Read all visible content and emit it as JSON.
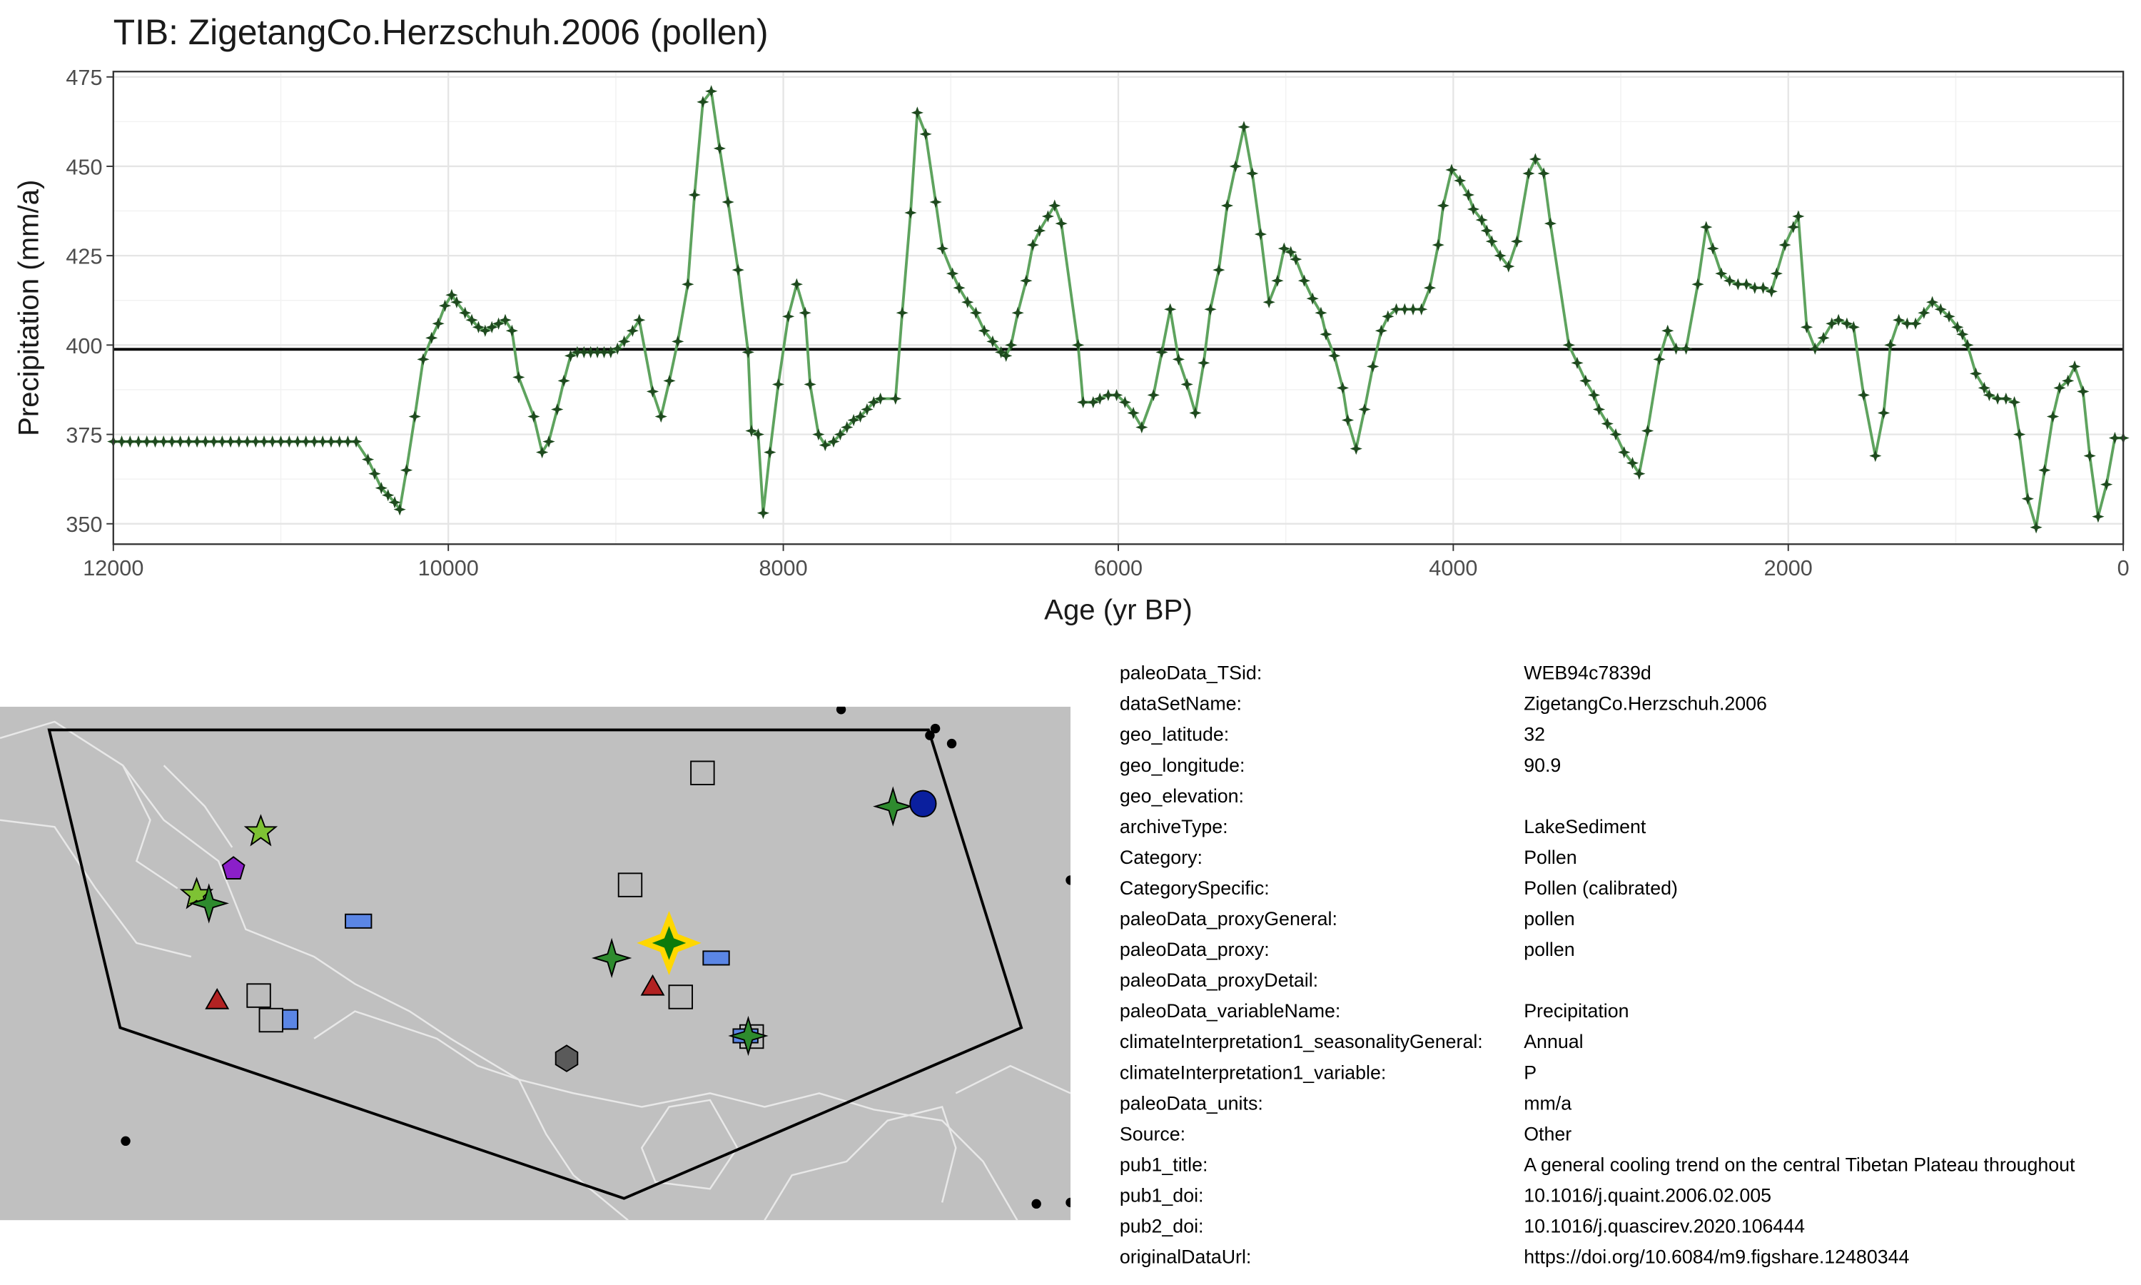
{
  "chart_data": {
    "type": "line",
    "title": "TIB: ZigetangCo.Herzschuh.2006 (pollen)",
    "x_label": "Age (yr BP)",
    "y_label": "Precipitation (mm/a)",
    "xlim": [
      12000,
      0
    ],
    "ylim": [
      344.3,
      476.5
    ],
    "xticks": [
      12000,
      10000,
      8000,
      6000,
      4000,
      2000,
      0
    ],
    "yticks": [
      350,
      375,
      400,
      425,
      450,
      475
    ],
    "xminor": [
      11000,
      9000,
      7000,
      5000,
      3000,
      1000
    ],
    "yminor": [
      362.5,
      387.5,
      412.5,
      437.5,
      462.5
    ],
    "grid": true,
    "reference_line": 398.8,
    "x": [
      12000,
      11950,
      11900,
      11850,
      11800,
      11750,
      11700,
      11650,
      11600,
      11550,
      11500,
      11450,
      11400,
      11350,
      11300,
      11250,
      11200,
      11150,
      11100,
      11050,
      11000,
      10950,
      10900,
      10850,
      10800,
      10750,
      10700,
      10650,
      10600,
      10550,
      10480,
      10440,
      10400,
      10360,
      10320,
      10290,
      10250,
      10200,
      10150,
      10100,
      10060,
      10020,
      9980,
      9950,
      9900,
      9860,
      9820,
      9780,
      9740,
      9700,
      9660,
      9620,
      9580,
      9490,
      9440,
      9400,
      9350,
      9310,
      9270,
      9230,
      9190,
      9150,
      9110,
      9070,
      9030,
      8990,
      8950,
      8900,
      8860,
      8780,
      8730,
      8680,
      8630,
      8570,
      8530,
      8480,
      8430,
      8380,
      8330,
      8270,
      8210,
      8190,
      8150,
      8120,
      8080,
      8030,
      7970,
      7920,
      7870,
      7840,
      7790,
      7750,
      7700,
      7660,
      7620,
      7580,
      7540,
      7500,
      7460,
      7420,
      7330,
      7290,
      7240,
      7200,
      7150,
      7090,
      7050,
      6990,
      6950,
      6900,
      6850,
      6800,
      6750,
      6700,
      6670,
      6640,
      6600,
      6550,
      6510,
      6470,
      6420,
      6380,
      6340,
      6240,
      6210,
      6150,
      6110,
      6060,
      6010,
      5960,
      5910,
      5860,
      5790,
      5740,
      5690,
      5640,
      5590,
      5540,
      5490,
      5450,
      5400,
      5350,
      5300,
      5250,
      5200,
      5150,
      5100,
      5050,
      5010,
      4970,
      4940,
      4890,
      4840,
      4790,
      4760,
      4710,
      4660,
      4630,
      4580,
      4530,
      4480,
      4430,
      4390,
      4340,
      4290,
      4240,
      4190,
      4140,
      4090,
      4060,
      4010,
      3960,
      3910,
      3880,
      3830,
      3800,
      3770,
      3720,
      3670,
      3620,
      3550,
      3510,
      3460,
      3420,
      3310,
      3260,
      3210,
      3160,
      3130,
      3080,
      3030,
      2980,
      2930,
      2890,
      2840,
      2770,
      2720,
      2670,
      2610,
      2540,
      2490,
      2450,
      2400,
      2350,
      2300,
      2250,
      2200,
      2150,
      2100,
      2070,
      2020,
      1970,
      1940,
      1890,
      1840,
      1790,
      1740,
      1700,
      1650,
      1610,
      1550,
      1480,
      1430,
      1390,
      1340,
      1290,
      1240,
      1190,
      1140,
      1090,
      1040,
      990,
      960,
      930,
      880,
      830,
      800,
      750,
      700,
      650,
      620,
      570,
      520,
      470,
      420,
      380,
      330,
      290,
      240,
      200,
      150,
      100,
      50,
      0
    ],
    "series": [
      {
        "color": "#5ea35e",
        "marker_color": "#1e4a1e",
        "values": [
          373,
          373,
          373,
          373,
          373,
          373,
          373,
          373,
          373,
          373,
          373,
          373,
          373,
          373,
          373,
          373,
          373,
          373,
          373,
          373,
          373,
          373,
          373,
          373,
          373,
          373,
          373,
          373,
          373,
          373,
          368,
          364,
          360,
          358,
          356,
          354,
          365,
          380,
          396,
          402,
          406,
          411,
          414,
          412,
          409,
          407,
          405,
          404,
          405,
          406,
          407,
          404,
          391,
          380,
          370,
          373,
          382,
          390,
          397,
          398,
          398,
          398,
          398,
          398,
          398,
          399,
          401,
          404,
          407,
          387,
          380,
          390,
          401,
          417,
          442,
          468,
          471,
          455,
          440,
          421,
          398,
          376,
          375,
          353,
          370,
          389,
          408,
          417,
          409,
          389,
          375,
          372,
          373,
          375,
          377,
          379,
          380,
          382,
          384,
          385,
          385,
          409,
          437,
          465,
          459,
          440,
          427,
          420,
          416,
          412,
          409,
          404,
          401,
          398,
          397,
          400,
          409,
          418,
          428,
          432,
          436,
          439,
          434,
          400,
          384,
          384,
          385,
          386,
          386,
          384,
          381,
          377,
          386,
          398,
          410,
          396,
          389,
          381,
          395,
          410,
          421,
          439,
          450,
          461,
          448,
          431,
          412,
          418,
          427,
          426,
          424,
          418,
          413,
          409,
          403,
          397,
          388,
          379,
          371,
          382,
          394,
          404,
          408,
          410,
          410,
          410,
          410,
          416,
          428,
          439,
          449,
          446,
          442,
          438,
          435,
          432,
          429,
          425,
          422,
          429,
          448,
          452,
          448,
          434,
          400,
          395,
          390,
          386,
          382,
          378,
          375,
          370,
          367,
          364,
          376,
          396,
          404,
          399,
          399,
          417,
          433,
          427,
          420,
          418,
          417,
          417,
          416,
          416,
          415,
          420,
          428,
          433,
          436,
          405,
          399,
          402,
          406,
          407,
          406,
          405,
          386,
          369,
          381,
          400,
          407,
          406,
          406,
          409,
          412,
          410,
          408,
          405,
          403,
          400,
          392,
          388,
          386,
          385,
          385,
          384,
          375,
          357,
          349,
          365,
          380,
          388,
          390,
          394,
          387,
          369,
          352,
          361,
          374,
          374
        ]
      }
    ]
  },
  "metadata": {
    "rows": [
      [
        "paleoData_TSid:",
        "WEB94c7839d"
      ],
      [
        "dataSetName:",
        "ZigetangCo.Herzschuh.2006"
      ],
      [
        "geo_latitude:",
        "32"
      ],
      [
        "geo_longitude:",
        "90.9"
      ],
      [
        "geo_elevation:"
      ],
      [
        "archiveType:",
        "LakeSediment"
      ],
      [
        "Category:",
        "Pollen"
      ],
      [
        "CategorySpecific:",
        "Pollen (calibrated)"
      ],
      [
        "paleoData_proxyGeneral:",
        "pollen"
      ],
      [
        "paleoData_proxy:",
        "pollen"
      ],
      [
        "paleoData_proxyDetail:"
      ],
      [
        "paleoData_variableName:",
        "Precipitation"
      ],
      [
        "climateInterpretation1_seasonalityGeneral:",
        "Annual"
      ],
      [
        "climateInterpretation1_variable:",
        "P"
      ],
      [
        "paleoData_units:",
        "mm/a"
      ],
      [
        "Source:",
        "Other"
      ],
      [
        "pub1_title:",
        "A general cooling trend on the central Tibetan Plateau throughout"
      ],
      [
        "pub1_doi:",
        "10.1016/j.quaint.2006.02.005"
      ],
      [
        "pub2_doi:",
        "10.1016/j.quascirev.2020.106444"
      ],
      [
        "originalDataUrl:",
        "https://doi.org/10.6084/m9.figshare.12480344"
      ]
    ]
  }
}
